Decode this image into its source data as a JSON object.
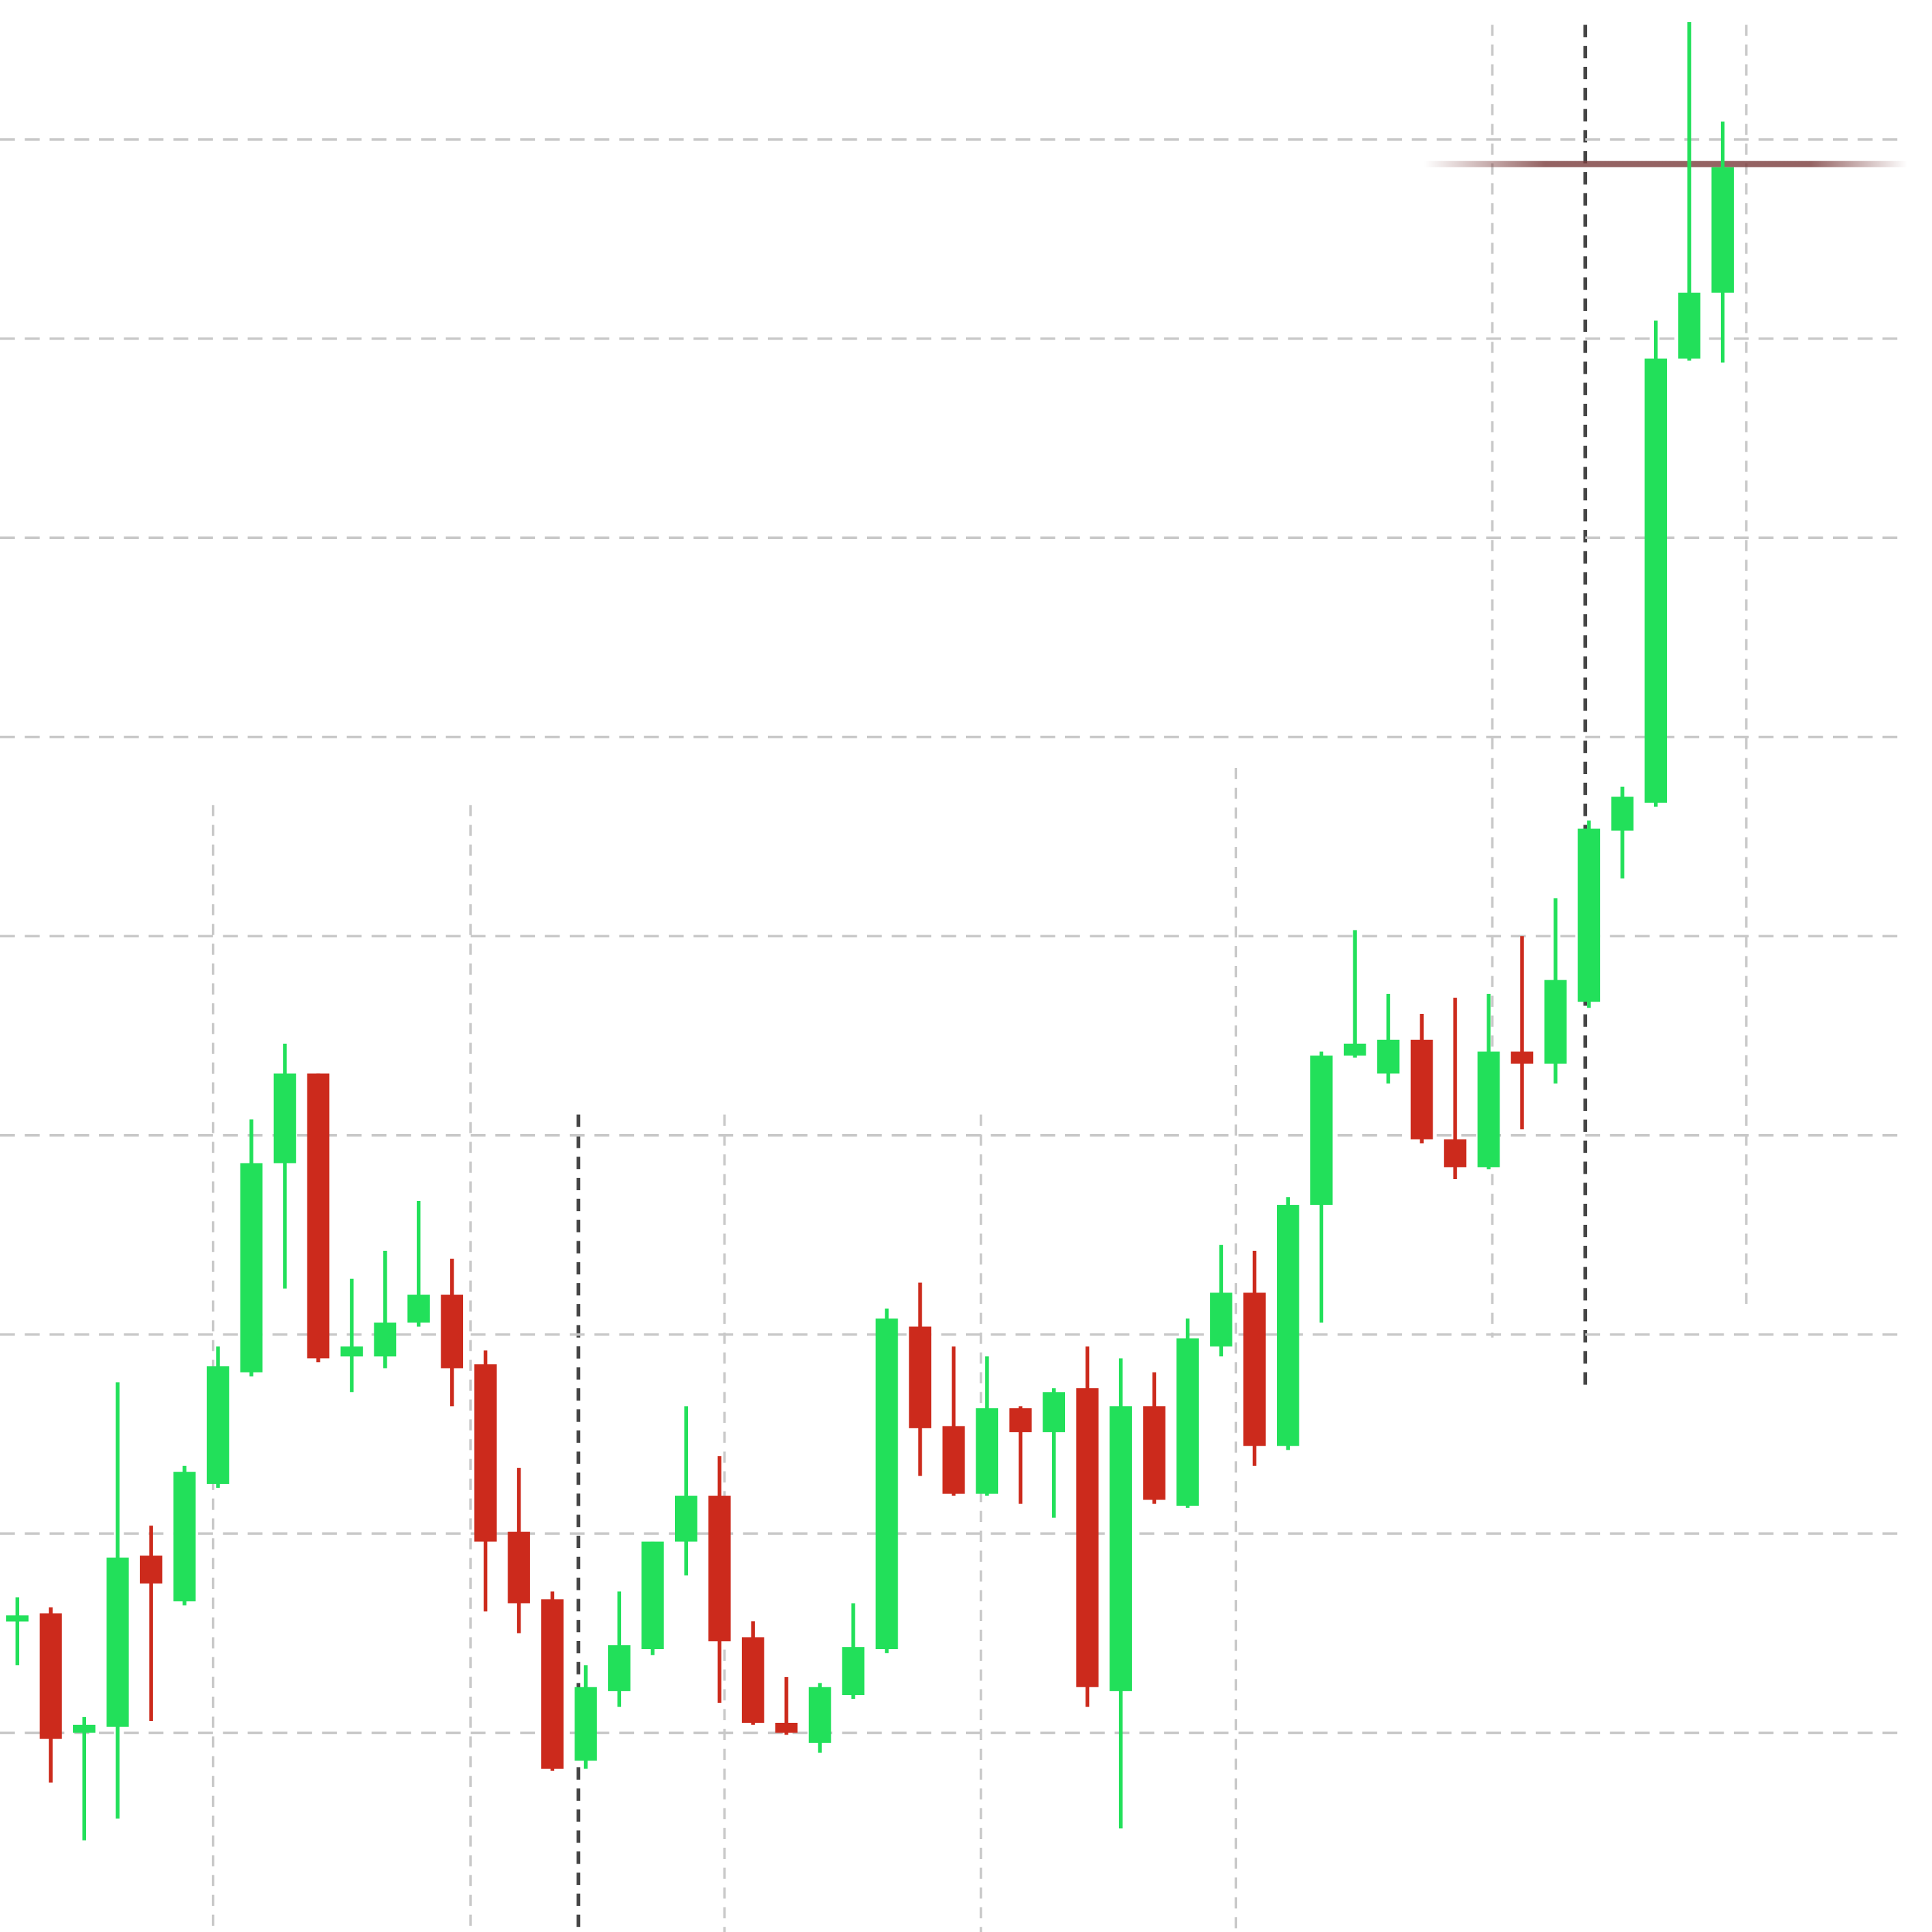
{
  "chart_data": {
    "type": "candlestick",
    "ylim": [
      -1,
      8.7
    ],
    "yticks": [
      0,
      1,
      2,
      3,
      4,
      5,
      6,
      7,
      8
    ],
    "grid": true,
    "up_color": "#22e05a",
    "down_color": "#cc2a1c",
    "open": [
      0.56,
      0.6,
      0,
      0.03,
      0.89,
      0.66,
      1.25,
      1.81,
      2.86,
      3.31,
      1.89,
      1.89,
      2.06,
      2.2,
      1.85,
      1.01,
      0.67,
      -0.14,
      0.21,
      0.42,
      0.96,
      1.19,
      0.48,
      0.05,
      -0.05,
      0.19,
      0.42,
      2.04,
      1.54,
      1.2,
      1.63,
      1.51,
      1.73,
      0.21,
      1.64,
      1.14,
      1.94,
      2.21,
      1.44,
      2.65,
      3.4,
      3.31,
      3.48,
      2.98,
      2.84,
      3.42,
      3.36,
      3.67,
      4.53,
      4.67,
      6.9,
      7.23
    ],
    "high": [
      0.68,
      0.63,
      0.08,
      1.76,
      1.04,
      1.34,
      1.94,
      3.08,
      3.46,
      3.31,
      2.28,
      2.42,
      2.67,
      2.38,
      1.92,
      1.33,
      0.71,
      0.34,
      0.71,
      0.96,
      1.64,
      1.39,
      0.56,
      0.28,
      0.25,
      0.65,
      2.13,
      2.26,
      1.94,
      1.89,
      1.64,
      1.73,
      1.94,
      1.88,
      1.81,
      2.08,
      2.45,
      2.42,
      2.69,
      3.42,
      4.03,
      3.71,
      3.61,
      3.69,
      3.71,
      4.0,
      4.19,
      4.58,
      4.75,
      7.09,
      8.59,
      8.09
    ],
    "low": [
      0.34,
      -0.25,
      -0.54,
      -0.43,
      0.06,
      0.64,
      1.23,
      1.79,
      2.23,
      1.86,
      1.71,
      1.83,
      2.04,
      1.64,
      0.61,
      0.5,
      -0.19,
      -0.18,
      0.13,
      0.39,
      0.79,
      0.15,
      0.04,
      -0.01,
      -0.1,
      0.17,
      0.4,
      1.29,
      1.19,
      1.19,
      1.15,
      1.08,
      0.13,
      -0.48,
      1.15,
      1.13,
      1.89,
      1.34,
      1.42,
      2.06,
      3.39,
      3.26,
      2.96,
      2.78,
      2.83,
      3.03,
      3.26,
      3.64,
      4.29,
      4.65,
      6.89,
      6.88
    ],
    "close": [
      0.59,
      -0.03,
      0.04,
      0.88,
      0.75,
      1.31,
      1.84,
      2.86,
      3.31,
      1.88,
      1.94,
      2.06,
      2.2,
      1.83,
      0.96,
      0.65,
      -0.18,
      0.23,
      0.44,
      0.96,
      1.19,
      0.46,
      0.05,
      0,
      0.23,
      0.43,
      2.08,
      1.53,
      1.2,
      1.63,
      1.51,
      1.71,
      0.23,
      1.64,
      1.17,
      1.98,
      2.21,
      1.44,
      2.65,
      3.4,
      3.46,
      3.48,
      2.98,
      2.84,
      3.42,
      3.36,
      3.78,
      4.54,
      4.7,
      6.9,
      7.23,
      7.86
    ]
  }
}
